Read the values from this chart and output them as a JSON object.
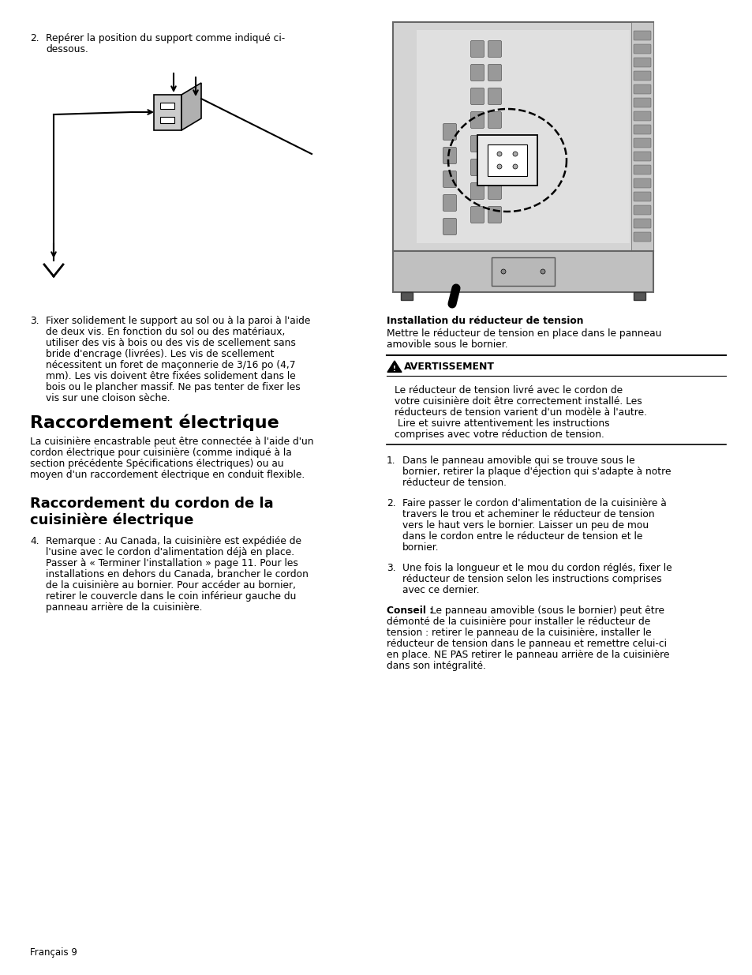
{
  "page_bg": "#ffffff",
  "text_color": "#000000",
  "footer_text": "Français 9",
  "item2_text_line1": "Repérer la position du support comme indiqué ci-",
  "item2_text_line2": "dessous.",
  "item3_text_lines": [
    "Fixer solidement le support au sol ou à la paroi à l'aide",
    "de deux vis. En fonction du sol ou des matériaux,",
    "utiliser des vis à bois ou des vis de scellement sans",
    "bride d'encrage (livrées). Les vis de scellement",
    "nécessitent un foret de maçonnerie de 3/16 po (4,7",
    "mm). Les vis doivent être fixées solidement dans le",
    "bois ou le plancher massif. Ne pas tenter de fixer les",
    "vis sur une cloison sèche."
  ],
  "section1_title": "Raccordement électrique",
  "section1_body_lines": [
    "La cuisinière encastrable peut être connectée à l'aide d'un",
    "cordon électrique pour cuisinière (comme indiqué à la",
    "section précédente Spécifications électriques) ou au",
    "moyen d'un raccordement électrique en conduit flexible."
  ],
  "section2_title_line1": "Raccordement du cordon de la",
  "section2_title_line2": "cuisinière électrique",
  "item4_text_lines": [
    "Remarque : Au Canada, la cuisinière est expédiée de",
    "l'usine avec le cordon d'alimentation déjà en place.",
    "Passer à « Terminer l'installation » page 11. Pour les",
    "installations en dehors du Canada, brancher le cordon",
    "de la cuisinière au bornier. Pour accéder au bornier,",
    "retirer le couvercle dans le coin inférieur gauche du",
    "panneau arrière de la cuisinière."
  ],
  "right_install_title": "Installation du réducteur de tension",
  "right_install_body_lines": [
    "Mettre le réducteur de tension en place dans le panneau",
    "amovible sous le bornier."
  ],
  "warning_title": "AVERTISSEMENT",
  "warning_body_lines": [
    "Le réducteur de tension livré avec le cordon de",
    "votre cuisinière doit être correctement installé. Les",
    "réducteurs de tension varient d'un modèle à l'autre.",
    " Lire et suivre attentivement les instructions",
    "comprises avec votre réduction de tension."
  ],
  "right_item1_text_lines": [
    "Dans le panneau amovible qui se trouve sous le",
    "bornier, retirer la plaque d'éjection qui s'adapte à notre",
    "réducteur de tension."
  ],
  "right_item2_text_lines": [
    "Faire passer le cordon d'alimentation de la cuisinière à",
    "travers le trou et acheminer le réducteur de tension",
    "vers le haut vers le bornier. Laisser un peu de mou",
    "dans le cordon entre le réducteur de tension et le",
    "bornier."
  ],
  "right_item3_text_lines": [
    "Une fois la longueur et le mou du cordon réglés, fixer le",
    "réducteur de tension selon les instructions comprises",
    "avec ce dernier."
  ],
  "conseil_bold": "Conseil :",
  "conseil_text_lines": [
    " Le panneau amovible (sous le bornier) peut être",
    "démonté de la cuisinière pour installer le réducteur de",
    "tension : retirer le panneau de la cuisinière, installer le",
    "réducteur de tension dans le panneau et remettre celui-ci",
    "en place. NE PAS retirer le panneau arrière de la cuisinière",
    "dans son intégralité."
  ]
}
